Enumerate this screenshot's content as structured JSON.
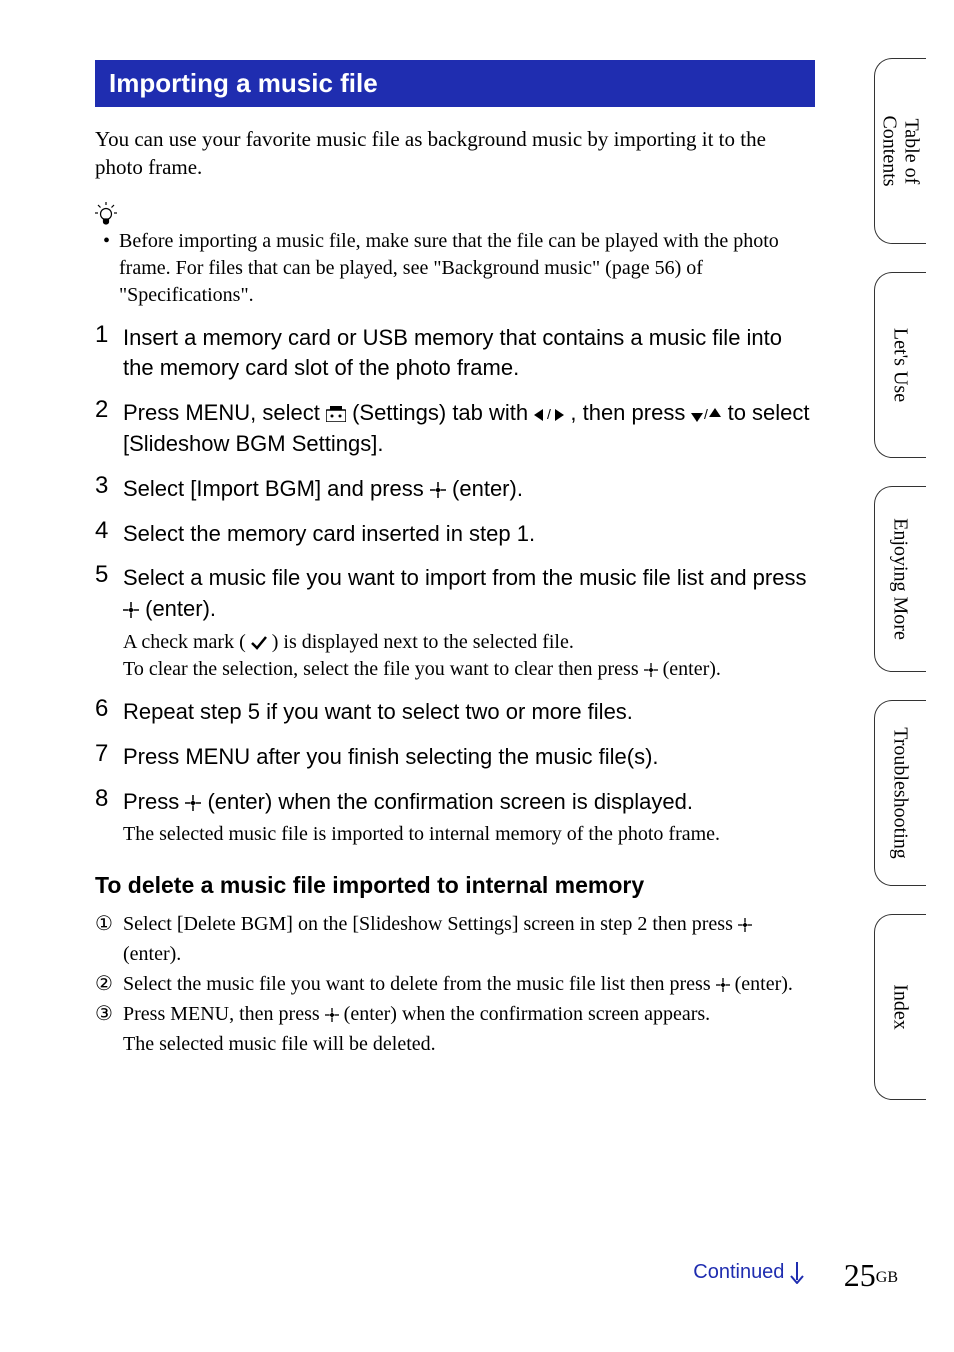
{
  "heading": "Importing a music file",
  "intro": "You can use your favorite music file as background music by importing it to the photo frame.",
  "tip": "Before importing a music file, make sure that the file can be played with the photo frame. For files that can be played, see \"Background music\" (page 56) of \"Specifications\".",
  "steps": [
    {
      "title": "Insert a memory card or USB memory that contains a music file into the memory card slot of the photo frame."
    },
    {
      "title_parts": {
        "a": "Press MENU, select ",
        "b": " (Settings) tab with ",
        "c": ", then press ",
        "d": " to select [Slideshow BGM Settings]."
      }
    },
    {
      "title_parts": {
        "a": "Select [Import BGM] and press ",
        "b": " (enter)."
      }
    },
    {
      "title": "Select the memory card inserted in step 1."
    },
    {
      "title_parts": {
        "a": "Select a music file you want to import from the music file list and press ",
        "b": " (enter)."
      },
      "note_parts": {
        "a": "A check mark (",
        "b": ") is displayed next to the selected file.",
        "c": "To clear the selection, select the file you want to clear then press ",
        "d": " (enter)."
      }
    },
    {
      "title": "Repeat step 5 if you want to select two or more files."
    },
    {
      "title": "Press MENU after you finish selecting the music file(s)."
    },
    {
      "title_parts": {
        "a": "Press ",
        "b": " (enter) when the confirmation screen is displayed."
      },
      "note": "The selected music file is imported to internal memory of the photo frame."
    }
  ],
  "delete_heading": "To delete a music file imported to internal memory",
  "delete_steps": [
    {
      "num": "①",
      "a": "Select [Delete BGM] on the [Slideshow Settings] screen in step 2 then press ",
      "b": " (enter)."
    },
    {
      "num": "②",
      "a": "Select the music file you want to delete from the music file list then press ",
      "b": " (enter)."
    },
    {
      "num": "③",
      "a": "Press MENU, then press ",
      "b": " (enter) when the confirmation screen appears."
    }
  ],
  "delete_note": "The selected music file will be deleted.",
  "tabs": [
    "Table of\nContents",
    "Let's Use",
    "Enjoying More",
    "Troubleshooting",
    "Index"
  ],
  "continued": "Continued",
  "page_number": "25",
  "page_suffix": "GB",
  "colors": {
    "heading_bg": "#1f2db0",
    "link": "#1f2db0"
  }
}
